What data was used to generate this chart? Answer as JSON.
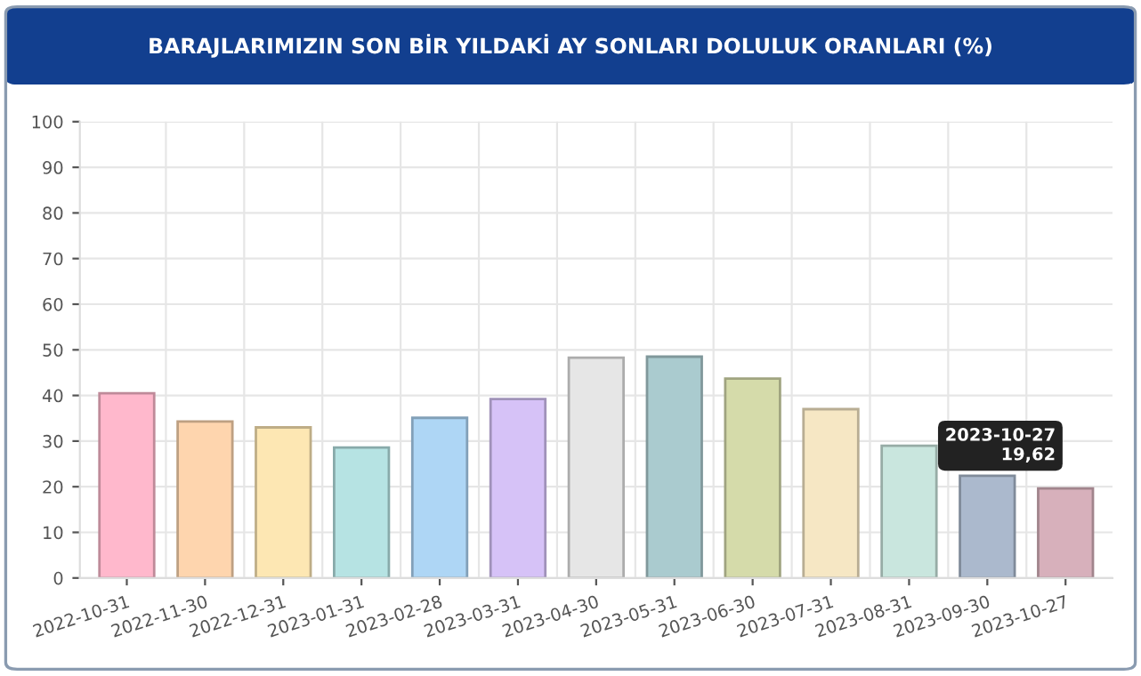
{
  "chart_data": {
    "type": "bar",
    "title": "BARAJLARIMIZIN SON BİR YILDAKİ AY SONLARI DOLULUK ORANLARI (%)",
    "categories": [
      "2022-10-31",
      "2022-11-30",
      "2022-12-31",
      "2023-01-31",
      "2023-02-28",
      "2023-03-31",
      "2023-04-30",
      "2023-05-31",
      "2023-06-30",
      "2023-07-31",
      "2023-08-31",
      "2023-09-30",
      "2023-10-27"
    ],
    "values": [
      40.5,
      34.3,
      33.0,
      28.6,
      35.1,
      39.2,
      48.3,
      48.5,
      43.7,
      37.0,
      29.0,
      22.4,
      19.62
    ],
    "colors": [
      "#ffb8cc",
      "#fed5ae",
      "#fde7b3",
      "#b6e3e3",
      "#aed6f5",
      "#d6c2f7",
      "#e6e6e6",
      "#aacbcf",
      "#d5dbaa",
      "#f6e7c4",
      "#c9e6de",
      "#abb9cd",
      "#d7b0bb"
    ],
    "ylim": [
      0,
      100
    ],
    "yticks": [
      0,
      10,
      20,
      30,
      40,
      50,
      60,
      70,
      80,
      90,
      100
    ],
    "grid": true,
    "annotations": [
      {
        "text": "2023-10-27\n19,62",
        "x": "2023-10-27",
        "y": 19.62
      }
    ]
  }
}
